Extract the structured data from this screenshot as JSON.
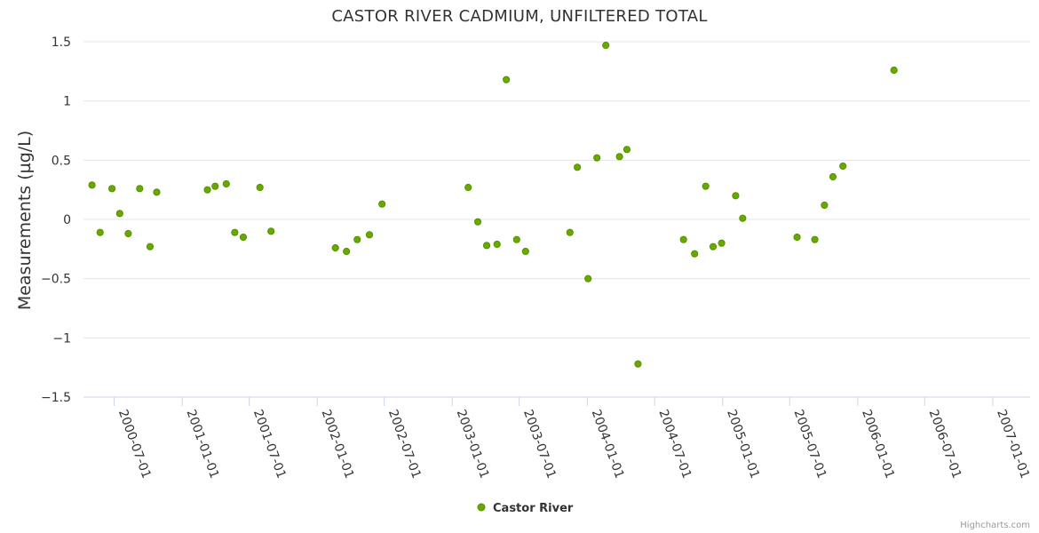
{
  "chart_data": {
    "type": "scatter",
    "title": "CASTOR RIVER CADMIUM, UNFILTERED TOTAL",
    "ylabel": "Measurements (µg/L)",
    "xlabel": "",
    "ylim": [
      -1.5,
      1.5
    ],
    "xlim": [
      "2000-04-09",
      "2007-04-12"
    ],
    "y_ticks": [
      {
        "value": 1.5,
        "label": "1.5"
      },
      {
        "value": 1,
        "label": "1"
      },
      {
        "value": 0.5,
        "label": "0.5"
      },
      {
        "value": 0,
        "label": "0"
      },
      {
        "value": -0.5,
        "label": "−0.5"
      },
      {
        "value": -1,
        "label": "−1"
      },
      {
        "value": -1.5,
        "label": "−1.5"
      }
    ],
    "x_ticks": [
      "2000-07-01",
      "2001-01-01",
      "2001-07-01",
      "2002-01-01",
      "2002-07-01",
      "2003-01-01",
      "2003-07-01",
      "2004-01-01",
      "2004-07-01",
      "2005-01-01",
      "2005-07-01",
      "2006-01-01",
      "2006-07-01",
      "2007-01-01"
    ],
    "legend_position": "bottom-center",
    "grid": true,
    "series": [
      {
        "name": "Castor River",
        "color": "#66aa00",
        "points": [
          {
            "x": "2000-05-02",
            "y": 0.29
          },
          {
            "x": "2000-05-24",
            "y": -0.11
          },
          {
            "x": "2000-06-25",
            "y": 0.26
          },
          {
            "x": "2000-07-16",
            "y": 0.05
          },
          {
            "x": "2000-08-08",
            "y": -0.12
          },
          {
            "x": "2000-09-08",
            "y": 0.26
          },
          {
            "x": "2000-10-06",
            "y": -0.23
          },
          {
            "x": "2000-10-24",
            "y": 0.23
          },
          {
            "x": "2001-03-10",
            "y": 0.25
          },
          {
            "x": "2001-03-31",
            "y": 0.28
          },
          {
            "x": "2001-04-30",
            "y": 0.3
          },
          {
            "x": "2001-05-23",
            "y": -0.11
          },
          {
            "x": "2001-06-15",
            "y": -0.15
          },
          {
            "x": "2001-07-30",
            "y": 0.27
          },
          {
            "x": "2001-08-29",
            "y": -0.1
          },
          {
            "x": "2002-02-19",
            "y": -0.24
          },
          {
            "x": "2002-03-21",
            "y": -0.27
          },
          {
            "x": "2002-04-19",
            "y": -0.17
          },
          {
            "x": "2002-05-22",
            "y": -0.13
          },
          {
            "x": "2002-06-25",
            "y": 0.13
          },
          {
            "x": "2003-02-13",
            "y": 0.27
          },
          {
            "x": "2003-03-11",
            "y": -0.02
          },
          {
            "x": "2003-04-04",
            "y": -0.22
          },
          {
            "x": "2003-05-02",
            "y": -0.21
          },
          {
            "x": "2003-05-27",
            "y": 1.18
          },
          {
            "x": "2003-06-24",
            "y": -0.17
          },
          {
            "x": "2003-07-18",
            "y": -0.27
          },
          {
            "x": "2003-11-15",
            "y": -0.11
          },
          {
            "x": "2003-12-05",
            "y": 0.44
          },
          {
            "x": "2004-01-03",
            "y": -0.5
          },
          {
            "x": "2004-01-27",
            "y": 0.52
          },
          {
            "x": "2004-02-20",
            "y": 1.47
          },
          {
            "x": "2004-03-28",
            "y": 0.53
          },
          {
            "x": "2004-04-17",
            "y": 0.59
          },
          {
            "x": "2004-05-17",
            "y": -1.22
          },
          {
            "x": "2004-09-17",
            "y": -0.17
          },
          {
            "x": "2004-10-17",
            "y": -0.29
          },
          {
            "x": "2004-11-16",
            "y": 0.28
          },
          {
            "x": "2004-12-06",
            "y": -0.23
          },
          {
            "x": "2004-12-29",
            "y": -0.2
          },
          {
            "x": "2005-02-05",
            "y": 0.2
          },
          {
            "x": "2005-02-24",
            "y": 0.01
          },
          {
            "x": "2005-07-21",
            "y": -0.15
          },
          {
            "x": "2005-09-07",
            "y": -0.17
          },
          {
            "x": "2005-10-03",
            "y": 0.12
          },
          {
            "x": "2005-10-26",
            "y": 0.36
          },
          {
            "x": "2005-11-22",
            "y": 0.45
          },
          {
            "x": "2006-04-09",
            "y": 1.26
          }
        ]
      }
    ]
  },
  "legend": {
    "items": [
      {
        "label": "Castor River"
      }
    ]
  },
  "credits": "Highcharts.com"
}
